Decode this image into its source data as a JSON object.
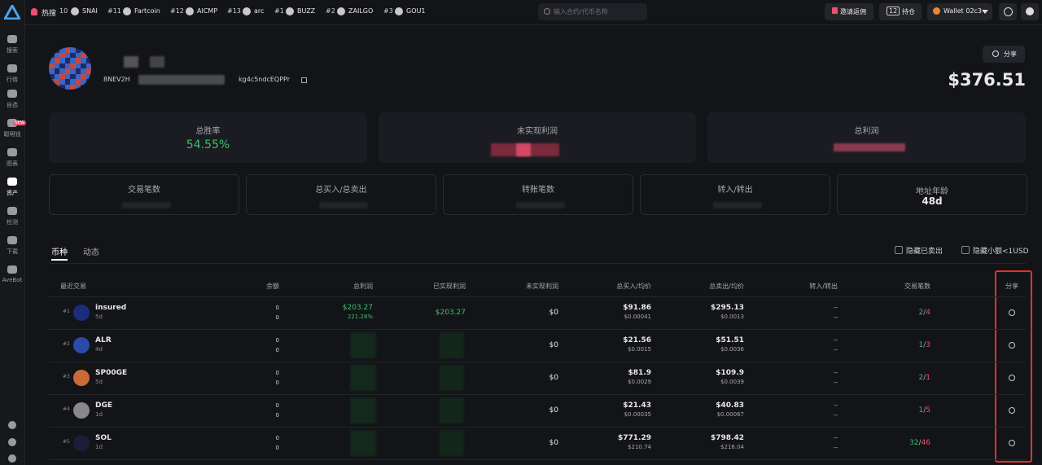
{
  "sidebar": {
    "items": [
      "搜索",
      "行情",
      "自选",
      "聪明钱",
      "图表",
      "资产",
      "检测",
      "下载",
      "AveBot"
    ],
    "badge": "NEW"
  },
  "topbar": {
    "hot_label": "热搜",
    "tickers": [
      {
        "rank": "10",
        "name": "SNAI"
      },
      {
        "rank": "#11",
        "name": "Fartcoin"
      },
      {
        "rank": "#12",
        "name": "AICMP"
      },
      {
        "rank": "#13",
        "name": "arc"
      },
      {
        "rank": "#1",
        "name": "BUZZ"
      },
      {
        "rank": "#2",
        "name": "ZAILGO"
      },
      {
        "rank": "#3",
        "name": "GOU1"
      }
    ],
    "search_placeholder": "输入合约/代币名称",
    "invite": "邀请返佣",
    "holdings_count": "12",
    "holdings": "持仓",
    "wallet": "Wallet 02c3"
  },
  "profile": {
    "address_start": "8NEV2H",
    "address_end": "kg4c5ndcEQPPr",
    "share": "分享",
    "balance": "$376.51"
  },
  "stats": {
    "win_rate_label": "总胜率",
    "win_rate": "54.55%",
    "unrealized_label": "未实现利润",
    "total_profit_label": "总利润",
    "trades_label": "交易笔数",
    "buy_sell_label": "总买入/总卖出",
    "transfers_label": "转账笔数",
    "in_out_label": "转入/转出",
    "age_label": "地址年龄",
    "age": "48d"
  },
  "tabs": [
    "币种",
    "动态"
  ],
  "filters": [
    "隐藏已卖出",
    "隐藏小额<1USD"
  ],
  "table": {
    "headers": [
      "最近交易",
      "余额",
      "总利润",
      "已实现利润",
      "未实现利润",
      "总买入/均价",
      "总卖出/均价",
      "转入/转出",
      "交易笔数",
      "分享"
    ],
    "trade_separator": "/",
    "rows": [
      {
        "rank": "#1",
        "symbol": "insured",
        "age": "5d",
        "balance": [
          "0",
          "0"
        ],
        "total_profit": "$203.27",
        "total_profit_pct": "221.28%",
        "realized": "$203.27",
        "unrealized": "$0",
        "buy": "$91.86",
        "buy_avg": "$0.00041",
        "sell": "$295.13",
        "sell_avg": "$0.0013",
        "transfer": [
          "--",
          "--"
        ],
        "buys": "2",
        "sells": "4"
      },
      {
        "rank": "#2",
        "symbol": "ALR",
        "age": "4d",
        "balance": [
          "0",
          "0"
        ],
        "unrealized": "$0",
        "buy": "$21.56",
        "buy_avg": "$0.0015",
        "sell": "$51.51",
        "sell_avg": "$0.0036",
        "transfer": [
          "--",
          "--"
        ],
        "buys": "1",
        "sells": "3"
      },
      {
        "rank": "#3",
        "symbol": "SP00GE",
        "age": "5d",
        "balance": [
          "0",
          "0"
        ],
        "unrealized": "$0",
        "buy": "$81.9",
        "buy_avg": "$0.0029",
        "sell": "$109.9",
        "sell_avg": "$0.0039",
        "transfer": [
          "--",
          "--"
        ],
        "buys": "2",
        "sells": "1"
      },
      {
        "rank": "#4",
        "symbol": "DGE",
        "age": "1d",
        "balance": [
          "0",
          "0"
        ],
        "unrealized": "$0",
        "buy": "$21.43",
        "buy_avg": "$0.00035",
        "sell": "$40.83",
        "sell_avg": "$0.00067",
        "transfer": [
          "--",
          "--"
        ],
        "buys": "1",
        "sells": "5"
      },
      {
        "rank": "#5",
        "symbol": "SOL",
        "age": "1d",
        "balance": [
          "0",
          "0"
        ],
        "unrealized": "$0",
        "buy": "$771.29",
        "buy_avg": "$210.74",
        "sell": "$798.42",
        "sell_avg": "$216.04",
        "transfer": [
          "--",
          "--"
        ],
        "buys": "32",
        "sells": "46"
      }
    ]
  }
}
